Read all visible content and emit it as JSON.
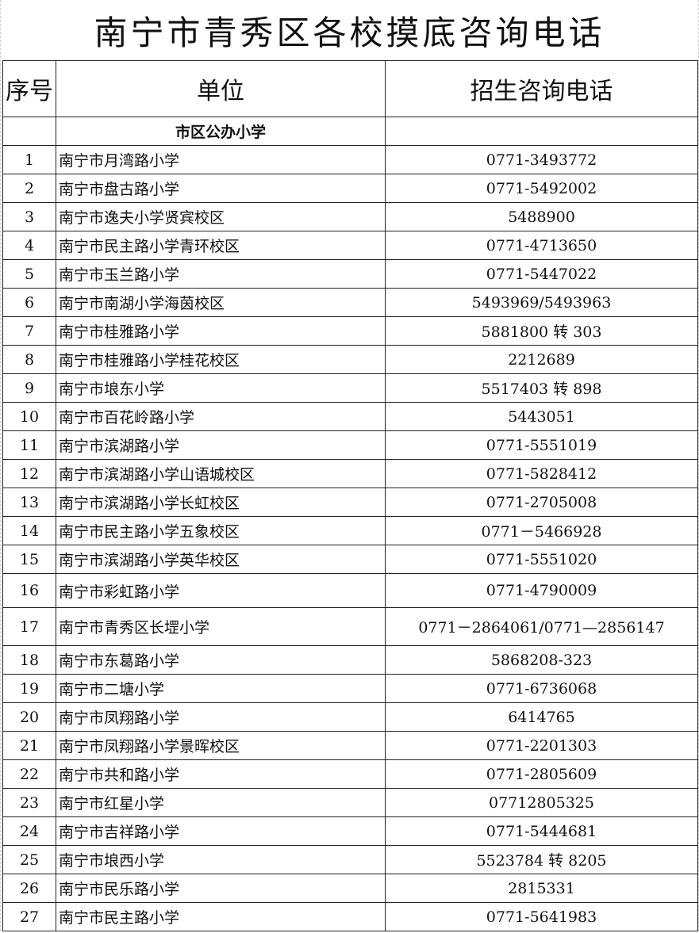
{
  "title": "南宁市青秀区各校摸底咨询电话",
  "headers": {
    "no": "序号",
    "unit": "单位",
    "phone": "招生咨询电话"
  },
  "section": "市区公办小学",
  "rows": [
    {
      "no": "1",
      "name": "南宁市月湾路小学",
      "phone": "0771-3493772"
    },
    {
      "no": "2",
      "name": "南宁市盘古路小学",
      "phone": "0771-5492002"
    },
    {
      "no": "3",
      "name": "南宁市逸夫小学贤宾校区",
      "phone": "5488900"
    },
    {
      "no": "4",
      "name": "南宁市民主路小学青环校区",
      "phone": "0771-4713650"
    },
    {
      "no": "5",
      "name": "南宁市玉兰路小学",
      "phone": "0771-5447022"
    },
    {
      "no": "6",
      "name": "南宁市南湖小学海茵校区",
      "phone": "5493969/5493963"
    },
    {
      "no": "7",
      "name": "南宁市桂雅路小学",
      "phone": "5881800 转 303"
    },
    {
      "no": "8",
      "name": "南宁市桂雅路小学桂花校区",
      "phone": "2212689"
    },
    {
      "no": "9",
      "name": "南宁市埌东小学",
      "phone": "5517403 转 898"
    },
    {
      "no": "10",
      "name": "南宁市百花岭路小学",
      "phone": "5443051"
    },
    {
      "no": "11",
      "name": "南宁市滨湖路小学",
      "phone": "0771-5551019"
    },
    {
      "no": "12",
      "name": "南宁市滨湖路小学山语城校区",
      "phone": "0771-5828412"
    },
    {
      "no": "13",
      "name": "南宁市滨湖路小学长虹校区",
      "phone": "0771-2705008"
    },
    {
      "no": "14",
      "name": "南宁市民主路小学五象校区",
      "phone": "0771－5466928"
    },
    {
      "no": "15",
      "name": "南宁市滨湖路小学英华校区",
      "phone": "0771-5551020"
    },
    {
      "no": "16",
      "name": "南宁市彩虹路小学",
      "phone": "0771-4790009"
    },
    {
      "no": "17",
      "name": "南宁市青秀区长堽小学",
      "phone": "0771－2864061/0771—2856147"
    },
    {
      "no": "18",
      "name": "南宁市东葛路小学",
      "phone": "5868208-323"
    },
    {
      "no": "19",
      "name": "南宁市二塘小学",
      "phone": "0771-6736068"
    },
    {
      "no": "20",
      "name": "南宁市凤翔路小学",
      "phone": "6414765"
    },
    {
      "no": "21",
      "name": "南宁市凤翔路小学景晖校区",
      "phone": "0771-2201303"
    },
    {
      "no": "22",
      "name": "南宁市共和路小学",
      "phone": "0771-2805609"
    },
    {
      "no": "23",
      "name": "南宁市红星小学",
      "phone": "07712805325"
    },
    {
      "no": "24",
      "name": "南宁市吉祥路小学",
      "phone": "0771-5444681"
    },
    {
      "no": "25",
      "name": "南宁市埌西小学",
      "phone": "5523784 转 8205"
    },
    {
      "no": "26",
      "name": "南宁市民乐路小学",
      "phone": "2815331"
    },
    {
      "no": "27",
      "name": "南宁市民主路小学",
      "phone": "0771-5641983"
    }
  ]
}
